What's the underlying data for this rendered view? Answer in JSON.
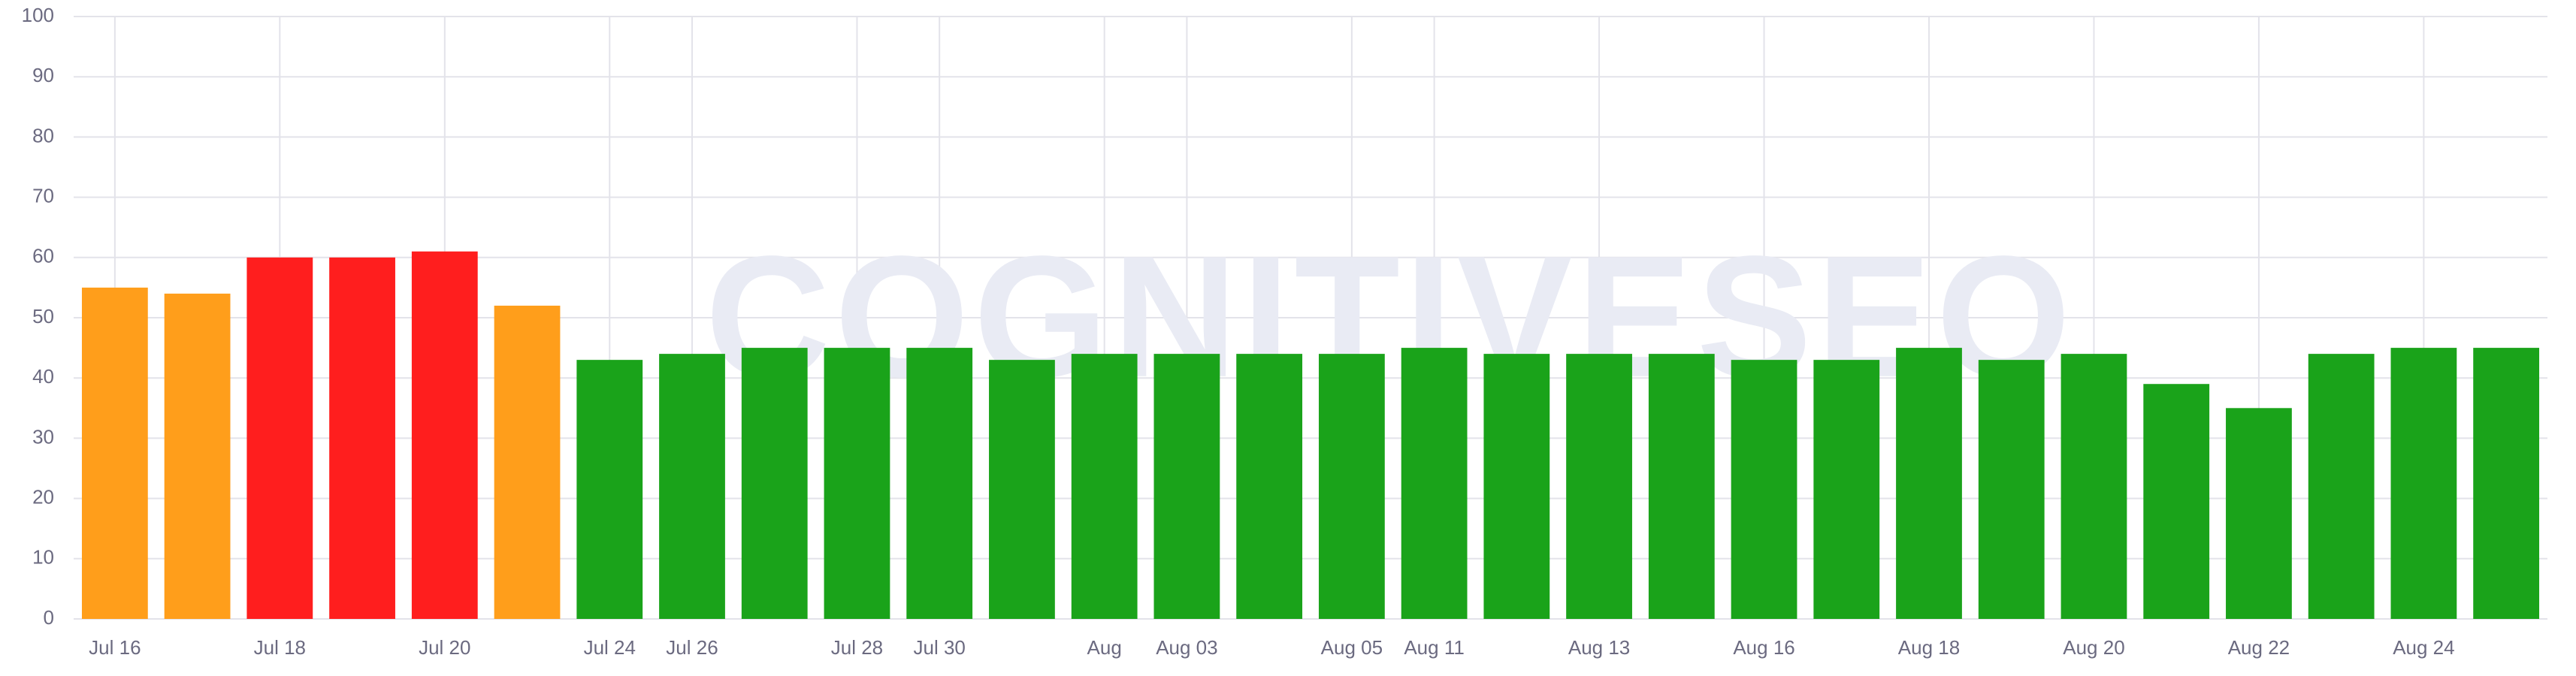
{
  "chart_data": {
    "type": "bar",
    "watermark": "COGNITIVESEO",
    "categories": [
      "Jul 16",
      null,
      "Jul 18",
      null,
      "Jul 20",
      null,
      "Jul 24",
      "Jul 26",
      null,
      "Jul 28",
      "Jul 30",
      null,
      "Aug",
      "Aug 03",
      null,
      "Aug 05",
      "Aug 11",
      null,
      "Aug 13",
      null,
      "Aug 16",
      null,
      "Aug 18",
      null,
      "Aug 20",
      null,
      "Aug 22",
      null,
      "Aug 24",
      null
    ],
    "values": [
      55,
      54,
      60,
      60,
      61,
      52,
      43,
      44,
      45,
      45,
      45,
      43,
      44,
      44,
      44,
      44,
      45,
      44,
      44,
      44,
      43,
      43,
      45,
      43,
      44,
      39,
      35,
      44,
      45,
      45
    ],
    "colors": [
      "#ff9e1b",
      "#ff9e1b",
      "#ff1e1e",
      "#ff1e1e",
      "#ff1e1e",
      "#ff9e1b",
      "#1aa31a",
      "#1aa31a",
      "#1aa31a",
      "#1aa31a",
      "#1aa31a",
      "#1aa31a",
      "#1aa31a",
      "#1aa31a",
      "#1aa31a",
      "#1aa31a",
      "#1aa31a",
      "#1aa31a",
      "#1aa31a",
      "#1aa31a",
      "#1aa31a",
      "#1aa31a",
      "#1aa31a",
      "#1aa31a",
      "#1aa31a",
      "#1aa31a",
      "#1aa31a",
      "#1aa31a",
      "#1aa31a",
      "#1aa31a"
    ],
    "ylim": [
      0,
      100
    ],
    "yticks": [
      0,
      10,
      20,
      30,
      40,
      50,
      60,
      70,
      80,
      90,
      100
    ],
    "grid": true
  }
}
